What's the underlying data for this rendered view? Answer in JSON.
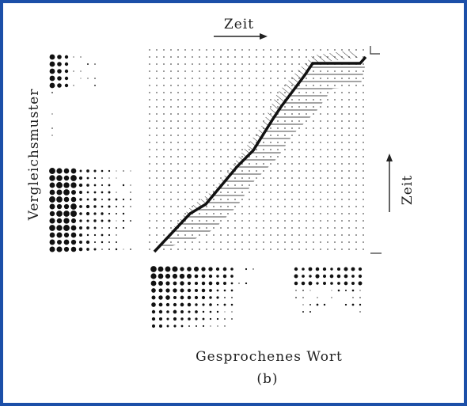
{
  "labels": {
    "top_axis": "Zeit",
    "left_axis": "Vergleichsmuster",
    "right_axis": "Zeit",
    "bottom_axis": "Gesprochenes Wort",
    "caption": "(b)"
  }
}
